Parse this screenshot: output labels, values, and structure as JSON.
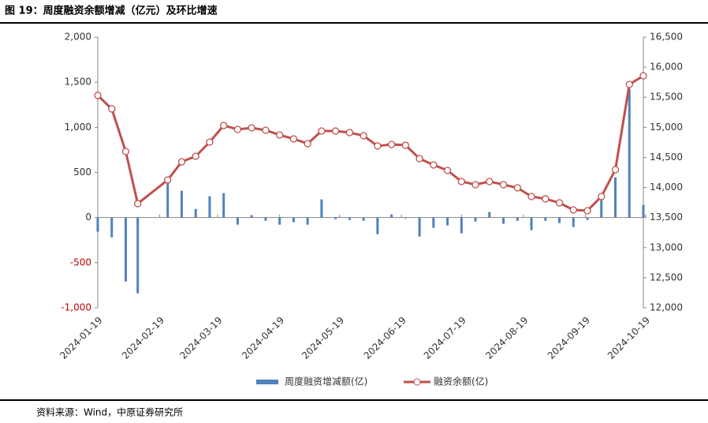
{
  "chart_data": {
    "type": "bar-line",
    "title": "图 19：周度融资余额增减（亿元）及环比增速",
    "source": "资料来源：Wind，中原证券研究所",
    "x": [
      "2024-01-19",
      "2024-01-26",
      "2024-02-02",
      "2024-02-08",
      "2024-02-23",
      "2024-03-01",
      "2024-03-08",
      "2024-03-15",
      "2024-03-22",
      "2024-03-29",
      "2024-04-05",
      "2024-04-12",
      "2024-04-19",
      "2024-04-26",
      "2024-05-03",
      "2024-05-10",
      "2024-05-17",
      "2024-05-24",
      "2024-05-31",
      "2024-06-07",
      "2024-06-14",
      "2024-06-21",
      "2024-06-28",
      "2024-07-05",
      "2024-07-12",
      "2024-07-19",
      "2024-07-26",
      "2024-08-02",
      "2024-08-09",
      "2024-08-16",
      "2024-08-23",
      "2024-08-30",
      "2024-09-06",
      "2024-09-13",
      "2024-09-20",
      "2024-09-27",
      "2024-10-04",
      "2024-10-11",
      "2024-10-18"
    ],
    "xlim": [
      "2024-01-19",
      "2024-10-18"
    ],
    "xticks": [
      "2024-01-19",
      "2024-02-19",
      "2024-03-19",
      "2024-04-19",
      "2024-05-19",
      "2024-06-19",
      "2024-07-19",
      "2024-08-19",
      "2024-09-19",
      "2024-10-19"
    ],
    "series": [
      {
        "name": "周度融资增减额(亿)",
        "type": "bar",
        "color": "#4f81bd",
        "values": [
          -157,
          -219,
          -708,
          -839,
          402,
          297,
          96,
          236,
          271,
          -79,
          26,
          -35,
          -79,
          -52,
          -79,
          201,
          -17,
          -26,
          -35,
          -184,
          35,
          -9,
          -210,
          -114,
          -87,
          -175,
          -44,
          61,
          -70,
          -35,
          -140,
          -35,
          -61,
          -105,
          -26,
          227,
          446,
          1425,
          140
        ]
      },
      {
        "name": "融资余额(亿)",
        "type": "line",
        "axis": "y2",
        "color": "#c0504d",
        "values": [
          15530,
          15306,
          14598,
          13732,
          14125,
          14427,
          14519,
          14755,
          15031,
          14965,
          14991,
          14952,
          14873,
          14808,
          14729,
          14939,
          14939,
          14913,
          14860,
          14690,
          14716,
          14703,
          14480,
          14375,
          14283,
          14099,
          14047,
          14099,
          14047,
          13994,
          13850,
          13811,
          13745,
          13627,
          13614,
          13850,
          14296,
          15713,
          15857
        ]
      }
    ],
    "ylim": [
      -1000,
      2000
    ],
    "yticks": [
      {
        "value": -1000,
        "label": "-1,000"
      },
      -500,
      0,
      500,
      {
        "value": 1000,
        "label": "1,000"
      },
      {
        "value": 1500,
        "label": "1,500"
      },
      {
        "value": 2000,
        "label": "2,000"
      }
    ],
    "negative_tick_color": "#c00000",
    "y2lim": [
      12000,
      16500
    ],
    "y2ticks": [
      {
        "value": 12000,
        "label": "12,000"
      },
      {
        "value": 12500,
        "label": "12,500"
      },
      {
        "value": 13000,
        "label": "13,000"
      },
      {
        "value": 13500,
        "label": "13,500"
      },
      {
        "value": 14000,
        "label": "14,000"
      },
      {
        "value": 14500,
        "label": "14,500"
      },
      {
        "value": 15000,
        "label": "15,000"
      },
      {
        "value": 15500,
        "label": "15,500"
      },
      {
        "value": 16000,
        "label": "16,000"
      },
      {
        "value": 16500,
        "label": "16,500"
      }
    ],
    "legend": "bottom"
  }
}
